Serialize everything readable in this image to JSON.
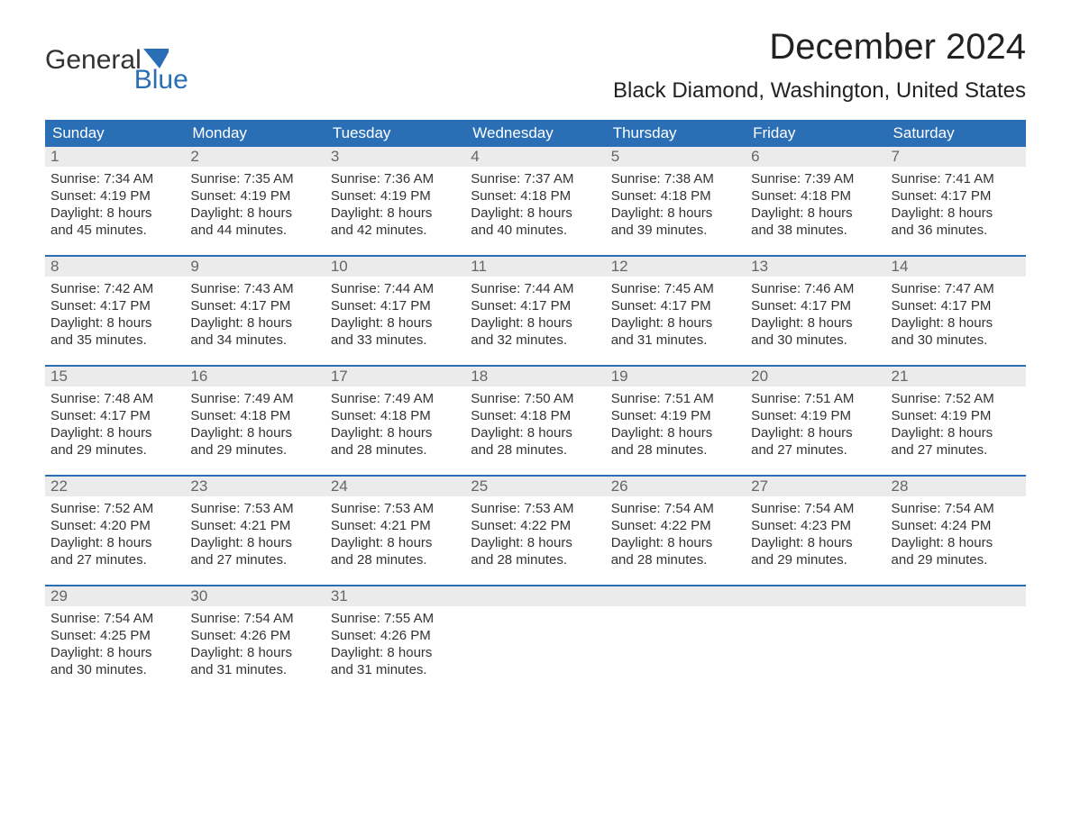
{
  "logo": {
    "text_a": "General",
    "text_b": "Blue",
    "accent_color": "#2a6fb5"
  },
  "title": "December 2024",
  "location": "Black Diamond, Washington, United States",
  "colors": {
    "header_bg": "#2a6fb5",
    "header_text": "#ffffff",
    "daynum_bg": "#ebebeb",
    "daynum_text": "#666666",
    "body_text": "#333333",
    "week_border": "#2a6fb5",
    "page_bg": "#ffffff"
  },
  "fonts": {
    "title_size_pt": 30,
    "location_size_pt": 18,
    "dow_size_pt": 13,
    "cell_size_pt": 11
  },
  "days_of_week": [
    "Sunday",
    "Monday",
    "Tuesday",
    "Wednesday",
    "Thursday",
    "Friday",
    "Saturday"
  ],
  "weeks": [
    {
      "nums": [
        "1",
        "2",
        "3",
        "4",
        "5",
        "6",
        "7"
      ],
      "cells": [
        {
          "sunrise": "Sunrise: 7:34 AM",
          "sunset": "Sunset: 4:19 PM",
          "dl1": "Daylight: 8 hours",
          "dl2": "and 45 minutes."
        },
        {
          "sunrise": "Sunrise: 7:35 AM",
          "sunset": "Sunset: 4:19 PM",
          "dl1": "Daylight: 8 hours",
          "dl2": "and 44 minutes."
        },
        {
          "sunrise": "Sunrise: 7:36 AM",
          "sunset": "Sunset: 4:19 PM",
          "dl1": "Daylight: 8 hours",
          "dl2": "and 42 minutes."
        },
        {
          "sunrise": "Sunrise: 7:37 AM",
          "sunset": "Sunset: 4:18 PM",
          "dl1": "Daylight: 8 hours",
          "dl2": "and 40 minutes."
        },
        {
          "sunrise": "Sunrise: 7:38 AM",
          "sunset": "Sunset: 4:18 PM",
          "dl1": "Daylight: 8 hours",
          "dl2": "and 39 minutes."
        },
        {
          "sunrise": "Sunrise: 7:39 AM",
          "sunset": "Sunset: 4:18 PM",
          "dl1": "Daylight: 8 hours",
          "dl2": "and 38 minutes."
        },
        {
          "sunrise": "Sunrise: 7:41 AM",
          "sunset": "Sunset: 4:17 PM",
          "dl1": "Daylight: 8 hours",
          "dl2": "and 36 minutes."
        }
      ]
    },
    {
      "nums": [
        "8",
        "9",
        "10",
        "11",
        "12",
        "13",
        "14"
      ],
      "cells": [
        {
          "sunrise": "Sunrise: 7:42 AM",
          "sunset": "Sunset: 4:17 PM",
          "dl1": "Daylight: 8 hours",
          "dl2": "and 35 minutes."
        },
        {
          "sunrise": "Sunrise: 7:43 AM",
          "sunset": "Sunset: 4:17 PM",
          "dl1": "Daylight: 8 hours",
          "dl2": "and 34 minutes."
        },
        {
          "sunrise": "Sunrise: 7:44 AM",
          "sunset": "Sunset: 4:17 PM",
          "dl1": "Daylight: 8 hours",
          "dl2": "and 33 minutes."
        },
        {
          "sunrise": "Sunrise: 7:44 AM",
          "sunset": "Sunset: 4:17 PM",
          "dl1": "Daylight: 8 hours",
          "dl2": "and 32 minutes."
        },
        {
          "sunrise": "Sunrise: 7:45 AM",
          "sunset": "Sunset: 4:17 PM",
          "dl1": "Daylight: 8 hours",
          "dl2": "and 31 minutes."
        },
        {
          "sunrise": "Sunrise: 7:46 AM",
          "sunset": "Sunset: 4:17 PM",
          "dl1": "Daylight: 8 hours",
          "dl2": "and 30 minutes."
        },
        {
          "sunrise": "Sunrise: 7:47 AM",
          "sunset": "Sunset: 4:17 PM",
          "dl1": "Daylight: 8 hours",
          "dl2": "and 30 minutes."
        }
      ]
    },
    {
      "nums": [
        "15",
        "16",
        "17",
        "18",
        "19",
        "20",
        "21"
      ],
      "cells": [
        {
          "sunrise": "Sunrise: 7:48 AM",
          "sunset": "Sunset: 4:17 PM",
          "dl1": "Daylight: 8 hours",
          "dl2": "and 29 minutes."
        },
        {
          "sunrise": "Sunrise: 7:49 AM",
          "sunset": "Sunset: 4:18 PM",
          "dl1": "Daylight: 8 hours",
          "dl2": "and 29 minutes."
        },
        {
          "sunrise": "Sunrise: 7:49 AM",
          "sunset": "Sunset: 4:18 PM",
          "dl1": "Daylight: 8 hours",
          "dl2": "and 28 minutes."
        },
        {
          "sunrise": "Sunrise: 7:50 AM",
          "sunset": "Sunset: 4:18 PM",
          "dl1": "Daylight: 8 hours",
          "dl2": "and 28 minutes."
        },
        {
          "sunrise": "Sunrise: 7:51 AM",
          "sunset": "Sunset: 4:19 PM",
          "dl1": "Daylight: 8 hours",
          "dl2": "and 28 minutes."
        },
        {
          "sunrise": "Sunrise: 7:51 AM",
          "sunset": "Sunset: 4:19 PM",
          "dl1": "Daylight: 8 hours",
          "dl2": "and 27 minutes."
        },
        {
          "sunrise": "Sunrise: 7:52 AM",
          "sunset": "Sunset: 4:19 PM",
          "dl1": "Daylight: 8 hours",
          "dl2": "and 27 minutes."
        }
      ]
    },
    {
      "nums": [
        "22",
        "23",
        "24",
        "25",
        "26",
        "27",
        "28"
      ],
      "cells": [
        {
          "sunrise": "Sunrise: 7:52 AM",
          "sunset": "Sunset: 4:20 PM",
          "dl1": "Daylight: 8 hours",
          "dl2": "and 27 minutes."
        },
        {
          "sunrise": "Sunrise: 7:53 AM",
          "sunset": "Sunset: 4:21 PM",
          "dl1": "Daylight: 8 hours",
          "dl2": "and 27 minutes."
        },
        {
          "sunrise": "Sunrise: 7:53 AM",
          "sunset": "Sunset: 4:21 PM",
          "dl1": "Daylight: 8 hours",
          "dl2": "and 28 minutes."
        },
        {
          "sunrise": "Sunrise: 7:53 AM",
          "sunset": "Sunset: 4:22 PM",
          "dl1": "Daylight: 8 hours",
          "dl2": "and 28 minutes."
        },
        {
          "sunrise": "Sunrise: 7:54 AM",
          "sunset": "Sunset: 4:22 PM",
          "dl1": "Daylight: 8 hours",
          "dl2": "and 28 minutes."
        },
        {
          "sunrise": "Sunrise: 7:54 AM",
          "sunset": "Sunset: 4:23 PM",
          "dl1": "Daylight: 8 hours",
          "dl2": "and 29 minutes."
        },
        {
          "sunrise": "Sunrise: 7:54 AM",
          "sunset": "Sunset: 4:24 PM",
          "dl1": "Daylight: 8 hours",
          "dl2": "and 29 minutes."
        }
      ]
    },
    {
      "nums": [
        "29",
        "30",
        "31",
        "",
        "",
        "",
        ""
      ],
      "cells": [
        {
          "sunrise": "Sunrise: 7:54 AM",
          "sunset": "Sunset: 4:25 PM",
          "dl1": "Daylight: 8 hours",
          "dl2": "and 30 minutes."
        },
        {
          "sunrise": "Sunrise: 7:54 AM",
          "sunset": "Sunset: 4:26 PM",
          "dl1": "Daylight: 8 hours",
          "dl2": "and 31 minutes."
        },
        {
          "sunrise": "Sunrise: 7:55 AM",
          "sunset": "Sunset: 4:26 PM",
          "dl1": "Daylight: 8 hours",
          "dl2": "and 31 minutes."
        },
        {
          "sunrise": "",
          "sunset": "",
          "dl1": "",
          "dl2": ""
        },
        {
          "sunrise": "",
          "sunset": "",
          "dl1": "",
          "dl2": ""
        },
        {
          "sunrise": "",
          "sunset": "",
          "dl1": "",
          "dl2": ""
        },
        {
          "sunrise": "",
          "sunset": "",
          "dl1": "",
          "dl2": ""
        }
      ]
    }
  ]
}
